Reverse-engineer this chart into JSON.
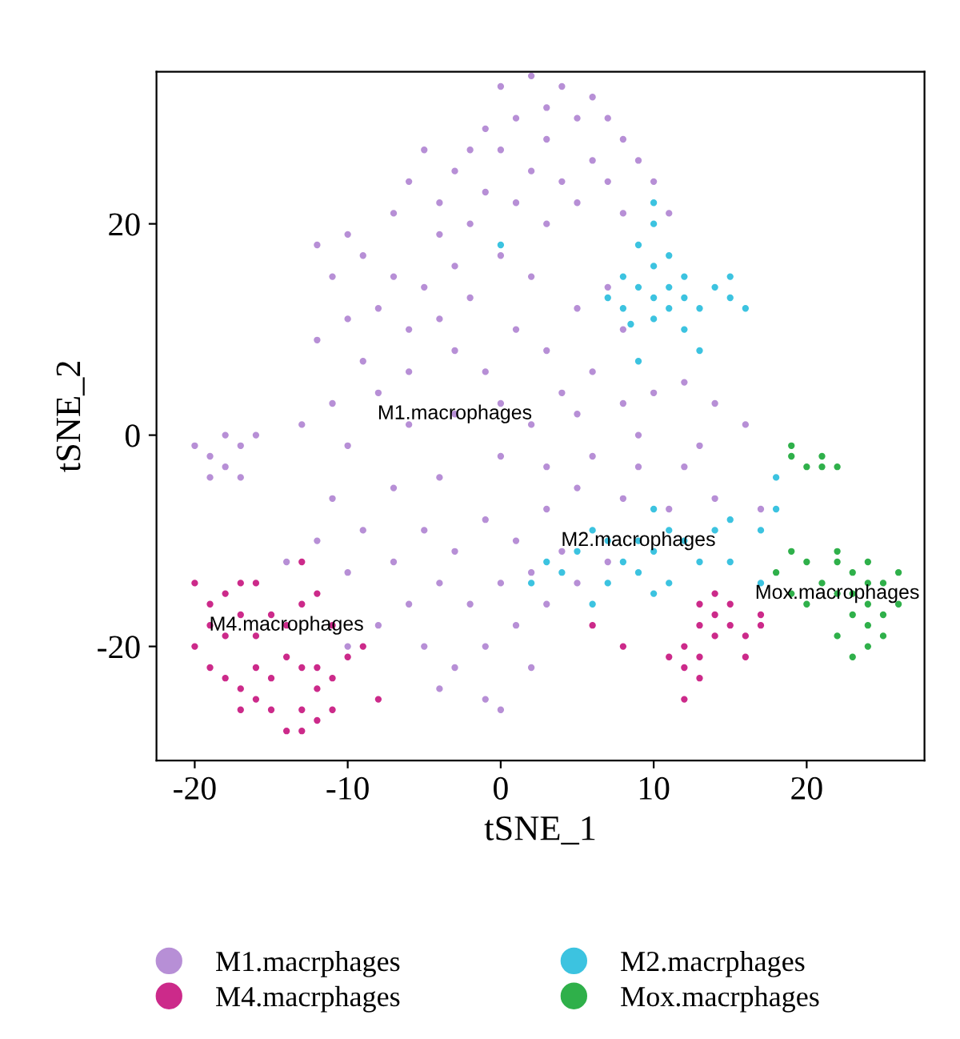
{
  "chart_data": {
    "type": "scatter",
    "xlabel": "tSNE_1",
    "ylabel": "tSNE_2",
    "xlim": [
      -22.5,
      27.7
    ],
    "ylim": [
      -30.8,
      34.4
    ],
    "xticks": [
      -20,
      -10,
      0,
      10,
      20
    ],
    "yticks": [
      -20,
      0,
      20
    ],
    "grid": false,
    "legend": "bottom",
    "marker": "circle",
    "annotations": [
      {
        "text": "M1.macrophages",
        "x": -3,
        "y": 2
      },
      {
        "text": "M2.macrophages",
        "x": 9,
        "y": -10
      },
      {
        "text": "M4.macrophages",
        "x": -14,
        "y": -18
      },
      {
        "text": "Mox.macrophages",
        "x": 22,
        "y": -15
      }
    ],
    "series": [
      {
        "name": "M1.macrphages",
        "color": "#b78fd6",
        "x": [
          0,
          2,
          4,
          6,
          3,
          1,
          -1,
          5,
          7,
          8,
          3,
          0,
          -2,
          6,
          9,
          2,
          -3,
          4,
          7,
          10,
          -1,
          1,
          5,
          -4,
          8,
          -2,
          3,
          11,
          -5,
          -6,
          -4,
          -7,
          -10,
          -12,
          -9,
          -11,
          -7,
          -5,
          -3,
          -8,
          -6,
          -4,
          -2,
          0,
          2,
          -10,
          -12,
          -9,
          -6,
          -3,
          -1,
          1,
          3,
          5,
          7,
          8,
          6,
          4,
          -8,
          -11,
          -13,
          -10,
          -6,
          -3,
          0,
          2,
          5,
          8,
          10,
          12,
          14,
          16,
          13,
          9,
          6,
          3,
          0,
          -4,
          -7,
          -11,
          -20,
          -19,
          -18,
          -17,
          -16,
          -18,
          -19,
          -17,
          -9,
          -12,
          -14,
          -10,
          -7,
          -5,
          -3,
          -1,
          1,
          3,
          -6,
          -4,
          -2,
          0,
          2,
          4,
          -8,
          -5,
          -3,
          -1,
          1,
          3,
          -4,
          -1,
          0,
          2,
          5,
          7,
          -10,
          5,
          8,
          11,
          14,
          17,
          9,
          12
        ],
        "values": [
          33,
          34,
          33,
          32,
          31,
          30,
          29,
          30,
          30,
          28,
          28,
          27,
          27,
          26,
          26,
          25,
          25,
          24,
          24,
          24,
          23,
          22,
          22,
          22,
          21,
          20,
          20,
          21,
          27,
          24,
          19,
          21,
          19,
          18,
          17,
          15,
          15,
          14,
          16,
          12,
          10,
          11,
          13,
          17,
          15,
          11,
          9,
          7,
          6,
          8,
          6,
          10,
          8,
          12,
          14,
          10,
          6,
          4,
          4,
          3,
          1,
          -1,
          1,
          2,
          3,
          1,
          2,
          3,
          4,
          5,
          3,
          1,
          -1,
          0,
          -2,
          -3,
          -2,
          -4,
          -5,
          -6,
          -1,
          -2,
          -3,
          -1,
          0,
          0,
          -4,
          -4,
          -9,
          -10,
          -12,
          -13,
          -12,
          -9,
          -11,
          -8,
          -10,
          -7,
          -16,
          -14,
          -16,
          -14,
          -13,
          -11,
          -18,
          -20,
          -22,
          -20,
          -18,
          -16,
          -24,
          -25,
          -26,
          -22,
          -14,
          -12,
          -20,
          -5,
          -6,
          -7,
          -6,
          -7,
          -3,
          -3
        ]
      },
      {
        "name": "M2.macrphages",
        "color": "#3cc3e0",
        "x": [
          10,
          10,
          9,
          11,
          10,
          8,
          12,
          9,
          11,
          10,
          12,
          8,
          11,
          10,
          13,
          15,
          15,
          16,
          14,
          7,
          12,
          13,
          9,
          8.5,
          6,
          5,
          7,
          8,
          9,
          10,
          11,
          12,
          13,
          9,
          10,
          7,
          6,
          4,
          2,
          11,
          14,
          15,
          17,
          17,
          18,
          18,
          15,
          10,
          3,
          0
        ],
        "values": [
          22,
          20,
          18,
          17,
          16,
          15,
          15,
          14,
          14,
          13,
          13,
          12,
          12,
          11,
          12,
          13,
          15,
          12,
          14,
          13,
          10,
          8,
          7,
          10.5,
          -9,
          -11,
          -10,
          -12,
          -10,
          -11,
          -9,
          -10,
          -12,
          -13,
          -15,
          -14,
          -16,
          -13,
          -14,
          -14,
          -9,
          -12,
          -9,
          -14,
          -7,
          -4,
          -8,
          -7,
          -12,
          18
        ]
      },
      {
        "name": "M4.macrphages",
        "color": "#cc2a8a",
        "x": [
          -20,
          -19,
          -18,
          -17,
          -16,
          -19,
          -18,
          -17,
          -16,
          -15,
          -14,
          -13,
          -12,
          -11,
          -19,
          -18,
          -17,
          -16,
          -15,
          -14,
          -13,
          -12,
          -11,
          -13,
          -15,
          -17,
          -16,
          -12,
          -11,
          -10,
          -14,
          -13,
          -12,
          -9,
          -8,
          -13,
          -20,
          13,
          14,
          15,
          16,
          14,
          13,
          15,
          17,
          16,
          12,
          12,
          13,
          13,
          12,
          11,
          6,
          8,
          17,
          14
        ],
        "values": [
          -14,
          -16,
          -15,
          -14,
          -14,
          -18,
          -19,
          -17,
          -19,
          -17,
          -18,
          -16,
          -15,
          -18,
          -22,
          -23,
          -24,
          -22,
          -23,
          -21,
          -22,
          -24,
          -26,
          -26,
          -26,
          -26,
          -25,
          -27,
          -23,
          -21,
          -28,
          -28,
          -22,
          -20,
          -25,
          -12,
          -20,
          -16,
          -17,
          -18,
          -19,
          -19,
          -18,
          -16,
          -17,
          -21,
          -20,
          -22,
          -21,
          -23,
          -25,
          -21,
          -18,
          -20,
          -18,
          -15
        ]
      },
      {
        "name": "Mox.macrphages",
        "color": "#2fb04a",
        "x": [
          19,
          20,
          21,
          22,
          21,
          19,
          19,
          20,
          22,
          23,
          24,
          23,
          24,
          25,
          22,
          23,
          24,
          25,
          26,
          26,
          21,
          22,
          24,
          23,
          25,
          19,
          20,
          18,
          22,
          24
        ],
        "values": [
          -2,
          -3,
          -3,
          -3,
          -2,
          -1,
          -11,
          -12,
          -11,
          -13,
          -14,
          -15,
          -16,
          -17,
          -15,
          -17,
          -18,
          -14,
          -13,
          -16,
          -14,
          -19,
          -20,
          -21,
          -19,
          -15,
          -16,
          -13,
          -12,
          -12
        ]
      }
    ]
  }
}
